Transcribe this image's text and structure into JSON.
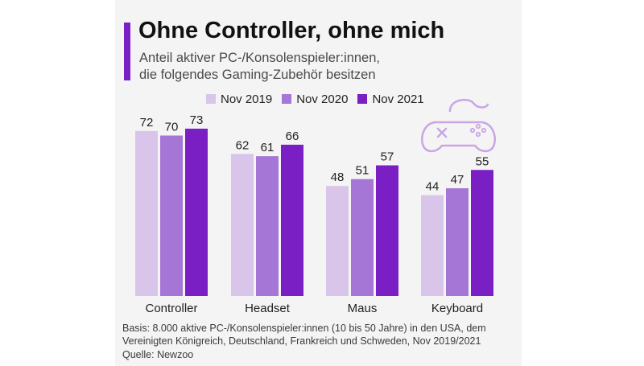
{
  "title": "Ohne Controller, ohne mich",
  "subtitle_lines": [
    "Anteil aktiver PC-/Konsolenspieler:innen,",
    "die folgendes Gaming-Zubehör besitzen"
  ],
  "accent_color": "#7a1fc4",
  "icon": "gamepad-icon",
  "footnote_lines": [
    "Basis: 8.000 aktive PC-/Konsolenspieler:innen (10 bis 50 Jahre) in den USA, dem",
    "Vereinigten Königreich, Deutschland, Frankreich und Schweden, Nov 2019/2021",
    "Quelle: Newzoo"
  ],
  "chart_data": {
    "type": "bar",
    "categories": [
      "Controller",
      "Headset",
      "Maus",
      "Keyboard"
    ],
    "series": [
      {
        "name": "Nov 2019",
        "color": "#d9c5ea",
        "values": [
          72,
          62,
          48,
          44
        ]
      },
      {
        "name": "Nov 2020",
        "color": "#a676d6",
        "values": [
          70,
          61,
          51,
          47
        ]
      },
      {
        "name": "Nov 2021",
        "color": "#7a1fc4",
        "values": [
          73,
          66,
          57,
          55
        ]
      }
    ],
    "ylim": [
      0,
      100
    ],
    "grid": false,
    "data_labels": true,
    "legend_position": "top"
  }
}
